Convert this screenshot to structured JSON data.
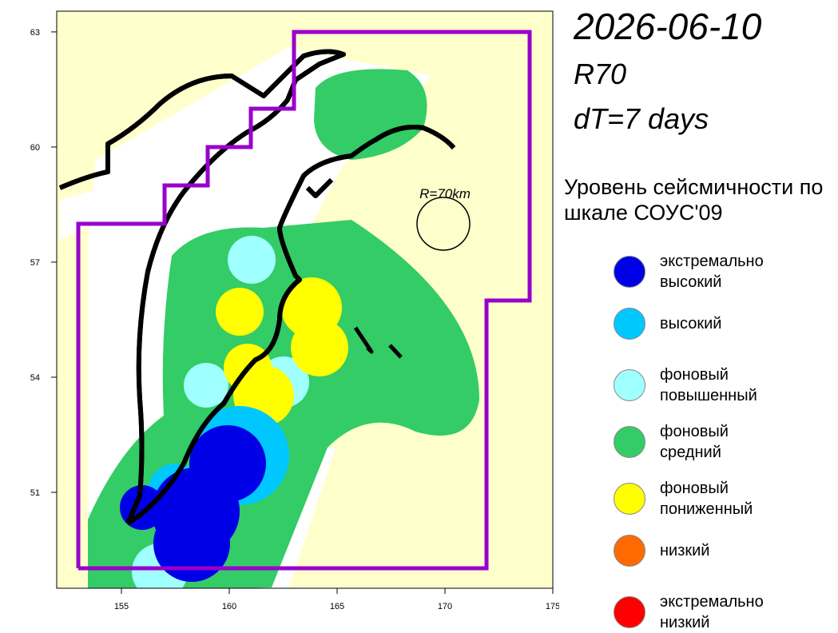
{
  "header": {
    "date": "2026-06-10",
    "model": "R70",
    "interval": "dT=7 days"
  },
  "map": {
    "radius_label": "R=70km",
    "xlim": [
      152,
      175
    ],
    "ylim": [
      48.5,
      63.54
    ],
    "xticks": [
      155,
      160,
      165,
      170,
      175
    ],
    "yticks": [
      51,
      54,
      57,
      60,
      63
    ]
  },
  "legend": {
    "title": "Уровень сейсмичности по шкале СОУС'09",
    "items": [
      {
        "label": "экстремально высокий",
        "color": "#0000e6"
      },
      {
        "label": "высокий",
        "color": "#00c8ff"
      },
      {
        "label": "фоновый повышенный",
        "color": "#a0ffff"
      },
      {
        "label": "фоновый средний",
        "color": "#33cc66"
      },
      {
        "label": "фоновый пониженный",
        "color": "#ffff00"
      },
      {
        "label": "низкий",
        "color": "#ff6a00"
      },
      {
        "label": "экстремально низкий",
        "color": "#ff0000"
      }
    ]
  }
}
